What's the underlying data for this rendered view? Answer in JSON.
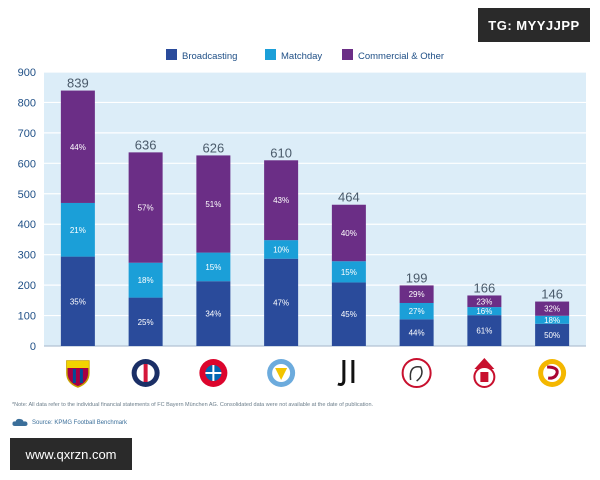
{
  "chart_data": {
    "type": "bar",
    "stacked": true,
    "categories": [
      "FC Barcelona",
      "Paris Saint-Germain",
      "FC Bayern München",
      "Manchester City",
      "Juventus",
      "Ajax",
      "Benfica",
      "Galatasaray"
    ],
    "totals": [
      839,
      636,
      626,
      610,
      464,
      199,
      166,
      146
    ],
    "series": [
      {
        "name": "Broadcasting",
        "color": "#2a4b9b",
        "percent": [
          35,
          25,
          34,
          47,
          45,
          44,
          61,
          50
        ]
      },
      {
        "name": "Matchday",
        "color": "#1b9fd8",
        "percent": [
          21,
          18,
          15,
          10,
          15,
          27,
          16,
          18
        ]
      },
      {
        "name": "Commercial & Other",
        "color": "#6b2e86",
        "percent": [
          44,
          57,
          51,
          43,
          40,
          29,
          23,
          32
        ]
      }
    ],
    "yticks": [
      0,
      100,
      200,
      300,
      400,
      500,
      600,
      700,
      800,
      900
    ],
    "ylim": [
      0,
      900
    ],
    "grid": true,
    "legend_position": "top"
  },
  "badges": {
    "telegram": "TG: MYYJJPP",
    "website": "www.qxrzn.com"
  },
  "footer": {
    "note": "*Note: All data refer to the individual financial statements of FC Bayern München AG. Consolidated data were not available at the date of publication.",
    "source": "Source: KPMG Football Benchmark"
  },
  "colors": {
    "plot_background": "#dcedf8",
    "grid": "#ffffff",
    "axis_text": "#1f4f86"
  },
  "icons": {
    "logos": [
      "fc-barcelona-crest-icon",
      "psg-crest-icon",
      "bayern-crest-icon",
      "man-city-crest-icon",
      "juventus-logo-icon",
      "ajax-logo-icon",
      "benfica-crest-icon",
      "galatasaray-crest-icon"
    ],
    "source": "cloud-icon"
  }
}
